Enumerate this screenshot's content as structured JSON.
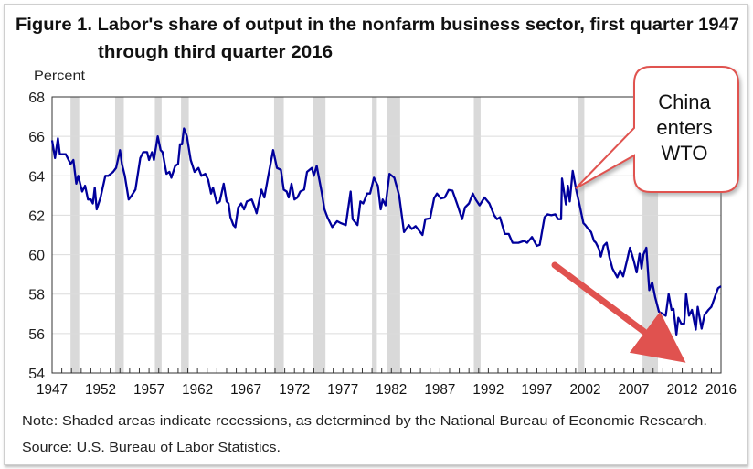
{
  "chart_data": {
    "type": "line",
    "title_line1": "Figure 1. Labor's share of output in the nonfarm business sector, first quarter 1947",
    "title_line2": "through third quarter 2016",
    "ylabel": "Percent",
    "xlabel": "",
    "ylim": [
      54,
      68
    ],
    "yticks": [
      54,
      56,
      58,
      60,
      62,
      64,
      66,
      68
    ],
    "xlim": [
      1947,
      2016
    ],
    "xticks": [
      "1947",
      "1952",
      "1957",
      "1962",
      "1967",
      "1972",
      "1977",
      "1982",
      "1987",
      "1992",
      "1997",
      "2002",
      "2007",
      "2012",
      "2016"
    ],
    "grid": true,
    "line_color": "#00009c",
    "recession_color": "#d9d9d9",
    "recessions": [
      [
        1948.9,
        1949.8
      ],
      [
        1953.5,
        1954.4
      ],
      [
        1957.6,
        1958.3
      ],
      [
        1960.3,
        1961.1
      ],
      [
        1969.9,
        1970.9
      ],
      [
        1973.9,
        1975.2
      ],
      [
        1980.0,
        1980.5
      ],
      [
        1981.5,
        1982.9
      ],
      [
        1990.5,
        1991.2
      ],
      [
        2001.2,
        2001.9
      ],
      [
        2007.9,
        2009.5
      ]
    ],
    "series": [
      {
        "points": [
          [
            1947.0,
            65.8
          ],
          [
            1947.3,
            64.9
          ],
          [
            1947.6,
            65.9
          ],
          [
            1947.8,
            65.1
          ],
          [
            1948.4,
            65.1
          ],
          [
            1948.9,
            64.6
          ],
          [
            1949.2,
            64.8
          ],
          [
            1949.5,
            63.6
          ],
          [
            1949.7,
            64.0
          ],
          [
            1950.1,
            63.2
          ],
          [
            1950.4,
            63.5
          ],
          [
            1950.7,
            62.8
          ],
          [
            1951.0,
            62.8
          ],
          [
            1951.2,
            62.6
          ],
          [
            1951.4,
            63.4
          ],
          [
            1951.6,
            62.3
          ],
          [
            1952.0,
            62.9
          ],
          [
            1952.5,
            64.0
          ],
          [
            1952.8,
            64.0
          ],
          [
            1953.3,
            64.2
          ],
          [
            1953.6,
            64.4
          ],
          [
            1954.0,
            65.3
          ],
          [
            1954.2,
            64.6
          ],
          [
            1954.5,
            64.0
          ],
          [
            1954.9,
            62.8
          ],
          [
            1955.2,
            63.0
          ],
          [
            1955.6,
            63.3
          ],
          [
            1956.1,
            64.9
          ],
          [
            1956.4,
            65.2
          ],
          [
            1956.8,
            65.2
          ],
          [
            1957.0,
            64.8
          ],
          [
            1957.3,
            65.2
          ],
          [
            1957.5,
            64.8
          ],
          [
            1957.9,
            66.0
          ],
          [
            1958.2,
            65.3
          ],
          [
            1958.4,
            65.2
          ],
          [
            1958.8,
            64.1
          ],
          [
            1959.1,
            64.2
          ],
          [
            1959.3,
            63.9
          ],
          [
            1959.7,
            64.5
          ],
          [
            1960.0,
            64.6
          ],
          [
            1960.2,
            65.6
          ],
          [
            1960.4,
            65.6
          ],
          [
            1960.6,
            66.4
          ],
          [
            1960.9,
            66.0
          ],
          [
            1961.3,
            64.8
          ],
          [
            1961.7,
            64.2
          ],
          [
            1962.1,
            64.4
          ],
          [
            1962.4,
            64.0
          ],
          [
            1962.8,
            64.1
          ],
          [
            1963.1,
            63.8
          ],
          [
            1963.4,
            63.1
          ],
          [
            1963.6,
            63.4
          ],
          [
            1964.0,
            62.6
          ],
          [
            1964.3,
            62.7
          ],
          [
            1964.7,
            63.6
          ],
          [
            1965.0,
            62.7
          ],
          [
            1965.2,
            62.6
          ],
          [
            1965.4,
            61.9
          ],
          [
            1965.7,
            61.5
          ],
          [
            1965.9,
            61.4
          ],
          [
            1966.2,
            62.4
          ],
          [
            1966.5,
            62.6
          ],
          [
            1966.8,
            62.3
          ],
          [
            1967.1,
            62.7
          ],
          [
            1967.6,
            62.8
          ],
          [
            1967.9,
            62.4
          ],
          [
            1968.1,
            62.1
          ],
          [
            1968.6,
            63.3
          ],
          [
            1968.9,
            62.9
          ],
          [
            1969.3,
            64.0
          ],
          [
            1969.8,
            65.3
          ],
          [
            1970.2,
            64.4
          ],
          [
            1970.6,
            64.3
          ],
          [
            1970.9,
            63.3
          ],
          [
            1971.2,
            63.2
          ],
          [
            1971.4,
            62.9
          ],
          [
            1971.7,
            63.6
          ],
          [
            1972.0,
            62.8
          ],
          [
            1972.3,
            62.9
          ],
          [
            1972.6,
            63.2
          ],
          [
            1973.0,
            63.3
          ],
          [
            1973.3,
            64.2
          ],
          [
            1973.8,
            64.4
          ],
          [
            1974.0,
            64.0
          ],
          [
            1974.3,
            64.5
          ],
          [
            1974.8,
            63.2
          ],
          [
            1975.1,
            62.3
          ],
          [
            1975.4,
            61.9
          ],
          [
            1975.9,
            61.4
          ],
          [
            1976.4,
            61.7
          ],
          [
            1976.8,
            61.6
          ],
          [
            1977.3,
            61.5
          ],
          [
            1977.8,
            63.2
          ],
          [
            1978.0,
            61.8
          ],
          [
            1978.5,
            61.5
          ],
          [
            1978.8,
            62.7
          ],
          [
            1979.1,
            62.6
          ],
          [
            1979.5,
            63.1
          ],
          [
            1979.8,
            63.1
          ],
          [
            1980.2,
            63.9
          ],
          [
            1980.6,
            63.5
          ],
          [
            1980.9,
            62.3
          ],
          [
            1981.1,
            62.8
          ],
          [
            1981.4,
            62.5
          ],
          [
            1981.8,
            64.1
          ],
          [
            1982.3,
            63.9
          ],
          [
            1982.8,
            63.0
          ],
          [
            1983.3,
            61.15
          ],
          [
            1983.8,
            61.5
          ],
          [
            1984.1,
            61.3
          ],
          [
            1984.5,
            61.45
          ],
          [
            1985.2,
            61.0
          ],
          [
            1985.5,
            61.8
          ],
          [
            1986.0,
            61.85
          ],
          [
            1986.4,
            62.85
          ],
          [
            1986.7,
            63.1
          ],
          [
            1987.1,
            62.85
          ],
          [
            1987.5,
            62.9
          ],
          [
            1987.9,
            63.28
          ],
          [
            1988.3,
            63.25
          ],
          [
            1988.8,
            62.55
          ],
          [
            1989.3,
            61.8
          ],
          [
            1989.6,
            62.4
          ],
          [
            1990.0,
            62.6
          ],
          [
            1990.4,
            63.1
          ],
          [
            1990.7,
            62.8
          ],
          [
            1991.1,
            62.5
          ],
          [
            1991.6,
            62.9
          ],
          [
            1992.1,
            62.6
          ],
          [
            1992.6,
            62.0
          ],
          [
            1992.9,
            61.8
          ],
          [
            1993.2,
            61.9
          ],
          [
            1993.7,
            61.05
          ],
          [
            1994.1,
            61.05
          ],
          [
            1994.5,
            60.6
          ],
          [
            1995.1,
            60.6
          ],
          [
            1995.7,
            60.7
          ],
          [
            1996.0,
            60.6
          ],
          [
            1996.5,
            60.9
          ],
          [
            1997.0,
            60.45
          ],
          [
            1997.3,
            60.5
          ],
          [
            1997.8,
            61.9
          ],
          [
            1998.1,
            62.05
          ],
          [
            1998.5,
            62.0
          ],
          [
            1998.9,
            62.05
          ],
          [
            1999.2,
            61.8
          ],
          [
            1999.5,
            61.8
          ],
          [
            1999.6,
            63.86
          ],
          [
            2000.0,
            62.55
          ],
          [
            2000.2,
            63.5
          ],
          [
            2000.4,
            62.7
          ],
          [
            2000.7,
            64.25
          ],
          [
            2001.1,
            63.2
          ],
          [
            2001.4,
            62.55
          ],
          [
            2001.8,
            61.6
          ],
          [
            2002.0,
            61.5
          ],
          [
            2002.3,
            61.3
          ],
          [
            2002.6,
            61.15
          ],
          [
            2002.9,
            60.7
          ],
          [
            2003.1,
            60.6
          ],
          [
            2003.4,
            60.3
          ],
          [
            2003.6,
            59.9
          ],
          [
            2003.9,
            60.45
          ],
          [
            2004.2,
            60.6
          ],
          [
            2004.5,
            59.85
          ],
          [
            2004.8,
            59.3
          ],
          [
            2005.3,
            58.85
          ],
          [
            2005.6,
            59.2
          ],
          [
            2005.9,
            58.9
          ],
          [
            2006.3,
            59.7
          ],
          [
            2006.6,
            60.35
          ],
          [
            2007.0,
            59.7
          ],
          [
            2007.3,
            59.1
          ],
          [
            2007.6,
            60.05
          ],
          [
            2007.8,
            59.3
          ],
          [
            2008.0,
            60.0
          ],
          [
            2008.3,
            60.35
          ],
          [
            2008.6,
            58.2
          ],
          [
            2008.9,
            58.6
          ],
          [
            2009.2,
            57.85
          ],
          [
            2009.6,
            57.1
          ],
          [
            2010.0,
            57.0
          ],
          [
            2010.3,
            56.9
          ],
          [
            2010.6,
            58.0
          ],
          [
            2010.9,
            57.2
          ],
          [
            2011.1,
            57.25
          ],
          [
            2011.4,
            55.95
          ],
          [
            2011.6,
            56.8
          ],
          [
            2011.9,
            56.5
          ],
          [
            2012.2,
            56.5
          ],
          [
            2012.4,
            58.0
          ],
          [
            2012.7,
            56.9
          ],
          [
            2013.0,
            57.2
          ],
          [
            2013.4,
            56.2
          ],
          [
            2013.6,
            57.35
          ],
          [
            2014.0,
            56.25
          ],
          [
            2014.3,
            56.95
          ],
          [
            2014.7,
            57.2
          ],
          [
            2015.0,
            57.35
          ],
          [
            2015.4,
            57.9
          ],
          [
            2015.7,
            58.3
          ],
          [
            2016.0,
            58.4
          ]
        ]
      }
    ],
    "note": "Note: Shaded areas indicate recessions, as determined by the National Bureau of Economic Research.",
    "source": "Source: U.S. Bureau of Labor Statistics.",
    "annotations": {
      "callout_text": [
        "China",
        "enters",
        "WTO"
      ],
      "callout_color": "#e0524f",
      "arrow_color": "#e0524f"
    }
  }
}
